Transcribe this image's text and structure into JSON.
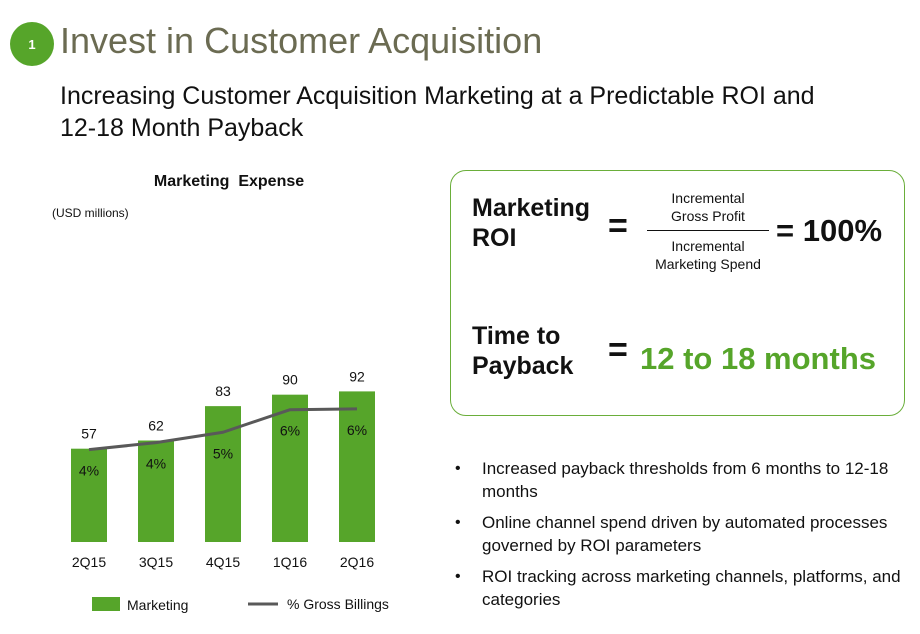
{
  "header": {
    "badge_number": "1",
    "title": "Invest in Customer Acquisition",
    "subtitle_line1": "Increasing Customer Acquisition Marketing at a Predictable ROI and",
    "subtitle_line2": "12-18 Month Payback"
  },
  "chart_data": {
    "type": "bar+line",
    "title": "Marketing  Expense",
    "unit_label": "(USD millions)",
    "categories": [
      "2Q15",
      "3Q15",
      "4Q15",
      "1Q16",
      "2Q16"
    ],
    "series": [
      {
        "name": "Marketing",
        "type": "bar",
        "values": [
          57,
          62,
          83,
          90,
          92
        ],
        "labels": [
          "57",
          "62",
          "83",
          "90",
          "92"
        ],
        "color": "#56a52a"
      },
      {
        "name": "% Gross Billings",
        "type": "line",
        "values": [
          4,
          4.4,
          5,
          6.3,
          6.35
        ],
        "labels": [
          "4%",
          "4%",
          "5%",
          "6%",
          "6%"
        ],
        "color": "#595959"
      }
    ],
    "ylim": [
      0,
      100
    ],
    "line_ylim": [
      0,
      10
    ],
    "grid": false,
    "legend_position": "bottom"
  },
  "roi": {
    "roi_label_line1": "Marketing",
    "roi_label_line2": "ROI",
    "equals": "=",
    "numerator_line1": "Incremental",
    "numerator_line2": "Gross Profit",
    "denominator_line1": "Incremental",
    "denominator_line2": "Marketing Spend",
    "roi_value": "= 100%",
    "payback_label_line1": "Time to",
    "payback_label_line2": "Payback",
    "payback_value": "12 to 18 months"
  },
  "bullets": [
    "Increased payback thresholds from 6 months to 12-18 months",
    "Online channel spend driven by automated processes governed by ROI parameters",
    "ROI tracking across marketing channels, platforms, and categories"
  ],
  "colors": {
    "accent": "#56a52a",
    "line": "#595959",
    "title": "#6b6b52"
  }
}
